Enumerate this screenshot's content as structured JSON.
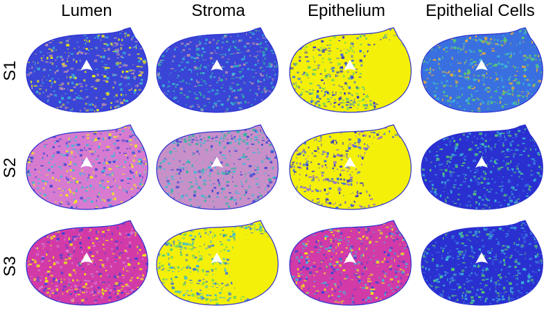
{
  "columns": [
    "Lumen",
    "Stroma",
    "Epithelium",
    "Epithelial Cells"
  ],
  "rows": [
    "S1",
    "S2",
    "S3"
  ],
  "colors": {
    "deep_blue": "#2a2fd0",
    "blue": "#3a6fe0",
    "cyan": "#3bb8d8",
    "teal": "#2fb4a0",
    "green": "#5ad06a",
    "yellow": "#f4f00a",
    "orange": "#f0b030",
    "pink": "#d77bd0",
    "magenta": "#d23aa8",
    "mauve": "#b890b0"
  },
  "panels": [
    [
      {
        "base": "#3a44d6",
        "blotches": [
          "#b890b0",
          "#3bb8d8",
          "#f4f00a"
        ],
        "fraction_yellow": 0.08
      },
      {
        "base": "#3a44d6",
        "blotches": [
          "#b890b0",
          "#2fb4a0",
          "#3bb8d8"
        ],
        "fraction_yellow": 0.03
      },
      {
        "base": "#f4f00a",
        "blotches": [
          "#3a6fe0",
          "#2a2fd0",
          "#5ad06a"
        ],
        "fraction_yellow": 0.6
      },
      {
        "base": "#3a6fe0",
        "blotches": [
          "#3bb8d8",
          "#5ad06a",
          "#f0b030"
        ],
        "fraction_yellow": 0.05
      }
    ],
    [
      {
        "base": "#d77bd0",
        "blotches": [
          "#3a44d6",
          "#f4f00a",
          "#3bb8d8"
        ],
        "fraction_yellow": 0.12
      },
      {
        "base": "#c890c8",
        "blotches": [
          "#3a44d6",
          "#3bb8d8",
          "#2fb4a0"
        ],
        "fraction_yellow": 0.02
      },
      {
        "base": "#f4f00a",
        "blotches": [
          "#3a6fe0",
          "#2a2fd0",
          "#9a6cd0"
        ],
        "fraction_yellow": 0.55
      },
      {
        "base": "#2a2fd0",
        "blotches": [
          "#3a6fe0",
          "#3bb8d8",
          "#5ad06a"
        ],
        "fraction_yellow": 0.03
      }
    ],
    [
      {
        "base": "#d23aa8",
        "blotches": [
          "#3a44d6",
          "#f4f00a",
          "#d77bd0"
        ],
        "fraction_yellow": 0.1
      },
      {
        "base": "#f4f00a",
        "blotches": [
          "#3a6fe0",
          "#3bb8d8",
          "#5ad06a"
        ],
        "fraction_yellow": 0.5
      },
      {
        "base": "#d23aa8",
        "blotches": [
          "#3a44d6",
          "#f4f00a",
          "#3bb8d8"
        ],
        "fraction_yellow": 0.08
      },
      {
        "base": "#2a2fd0",
        "blotches": [
          "#3a6fe0",
          "#3bb8d8",
          "#5ad06a"
        ],
        "fraction_yellow": 0.03
      }
    ]
  ]
}
